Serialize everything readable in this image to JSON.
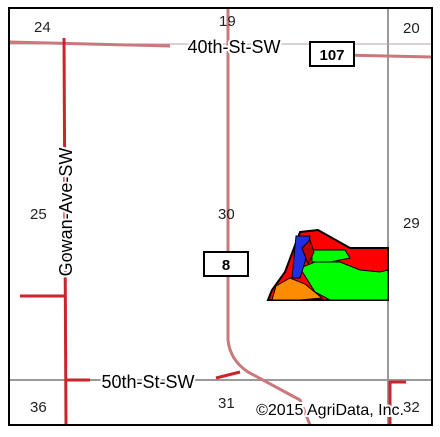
{
  "map": {
    "section_numbers": [
      "24",
      "19",
      "20",
      "25",
      "30",
      "29",
      "36",
      "31",
      "32"
    ],
    "roads": {
      "north": "40th-St-SW",
      "south": "50th-St-SW",
      "west": "Gowan-Ave-SW"
    },
    "route_shields": [
      "107",
      "8"
    ],
    "copyright": "©2015 AgriData, Inc."
  },
  "colors": {
    "road": "#c9787c",
    "road_dark": "#c8262c",
    "section_line": "#9a9a9a",
    "frame": "#000000",
    "zone_red": "#ff0000",
    "zone_green": "#00ff00",
    "zone_blue": "#2030e0",
    "zone_orange": "#ff8c00",
    "zone_darkred": "#c00000"
  }
}
